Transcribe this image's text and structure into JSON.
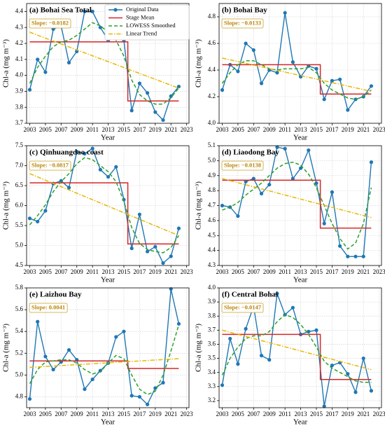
{
  "chart_data": [
    {
      "type": "line",
      "title": "(a) Bohai Sea Total",
      "annotation": "Slope: −0.0182",
      "xlabel": "Year",
      "ylabel": "Chl-a (mg m⁻³)",
      "xlim": [
        2002.6,
        2023.3
      ],
      "xticks": [
        2003,
        2005,
        2007,
        2009,
        2011,
        2013,
        2015,
        2017,
        2019,
        2021,
        2023
      ],
      "ylim": [
        3.7,
        4.45
      ],
      "yticks": [
        3.7,
        3.8,
        3.9,
        {
          "value": 4,
          "label": "4.0"
        },
        4.1,
        4.2,
        4.3,
        4.4
      ],
      "grid": true,
      "legend": "upper center",
      "x": [
        2003,
        2004,
        2005,
        2006,
        2007,
        2008,
        2009,
        2010,
        2011,
        2012,
        2013,
        2014,
        2015,
        2016,
        2017,
        2018,
        2019,
        2020,
        2021,
        2022
      ],
      "series": [
        {
          "name": "Original Data",
          "color": "#1f77b4",
          "style": "solid",
          "marker": true,
          "values": [
            3.91,
            4.1,
            4.02,
            4.29,
            4.31,
            4.08,
            4.15,
            4.4,
            4.4,
            4.3,
            4.22,
            4.35,
            4.22,
            3.78,
            3.95,
            3.89,
            3.77,
            3.72,
            3.87,
            3.93
          ]
        },
        {
          "name": "Stage Mean",
          "color": "#d62728",
          "style": "solid",
          "marker": false,
          "x": [
            2003,
            2015.5,
            2015.5,
            2022
          ],
          "values": [
            4.21,
            4.21,
            3.84,
            3.84
          ]
        },
        {
          "name": "LOWESS Smoothed",
          "color": "#2ca02c",
          "style": "dashed",
          "marker": false,
          "values": [
            3.95,
            4.05,
            4.12,
            4.18,
            4.21,
            4.22,
            4.25,
            4.29,
            4.33,
            4.31,
            4.27,
            4.22,
            4.12,
            3.97,
            3.88,
            3.84,
            3.82,
            3.82,
            3.86,
            3.92
          ]
        },
        {
          "name": "Linear Trend",
          "color": "#e6b800",
          "style": "dashdot",
          "marker": false,
          "x": [
            2003,
            2022
          ],
          "values": [
            4.27,
            3.92
          ]
        }
      ]
    },
    {
      "type": "line",
      "title": "(b) Bohai Bay",
      "annotation": "Slope: −0.0133",
      "xlabel": "Year",
      "ylabel": "Chl-a (mg m⁻³)",
      "xlim": [
        2002.6,
        2023.3
      ],
      "xticks": [
        2003,
        2005,
        2007,
        2009,
        2011,
        2013,
        2015,
        2017,
        2019,
        2021,
        2023
      ],
      "ylim": [
        4.0,
        4.9
      ],
      "yticks": [
        {
          "value": 4,
          "label": "4.0"
        },
        4.2,
        4.4,
        4.6,
        4.8
      ],
      "grid": true,
      "x": [
        2003,
        2004,
        2005,
        2006,
        2007,
        2008,
        2009,
        2010,
        2011,
        2012,
        2013,
        2014,
        2015,
        2016,
        2017,
        2018,
        2019,
        2020,
        2021,
        2022
      ],
      "series": [
        {
          "color": "#1f77b4",
          "style": "solid",
          "marker": true,
          "values": [
            4.25,
            4.44,
            4.39,
            4.6,
            4.55,
            4.3,
            4.4,
            4.38,
            4.83,
            4.46,
            4.35,
            4.43,
            4.41,
            4.18,
            4.32,
            4.33,
            4.1,
            4.18,
            4.2,
            4.28
          ]
        },
        {
          "color": "#d62728",
          "style": "solid",
          "marker": false,
          "x": [
            2003,
            2015.5,
            2015.5,
            2022
          ],
          "values": [
            4.44,
            4.44,
            4.22,
            4.22
          ]
        },
        {
          "color": "#2ca02c",
          "style": "dashed",
          "marker": false,
          "values": [
            4.3,
            4.38,
            4.44,
            4.47,
            4.47,
            4.44,
            4.41,
            4.4,
            4.41,
            4.41,
            4.41,
            4.42,
            4.38,
            4.3,
            4.25,
            4.22,
            4.19,
            4.18,
            4.2,
            4.25
          ]
        },
        {
          "color": "#e6b800",
          "style": "dashdot",
          "marker": false,
          "x": [
            2003,
            2022
          ],
          "values": [
            4.49,
            4.24
          ]
        }
      ]
    },
    {
      "type": "line",
      "title": "(c) Qinhuangdao coast",
      "annotation": "Slope: −0.0817",
      "xlabel": "Year",
      "ylabel": "Chl-a (mg m⁻³)",
      "xlim": [
        2002.6,
        2023.3
      ],
      "xticks": [
        2003,
        2005,
        2007,
        2009,
        2011,
        2013,
        2015,
        2017,
        2019,
        2021,
        2023
      ],
      "ylim": [
        4.5,
        7.5
      ],
      "yticks": [
        4.5,
        {
          "value": 5,
          "label": "5.0"
        },
        5.5,
        {
          "value": 6,
          "label": "6.0"
        },
        6.5,
        {
          "value": 7,
          "label": "7.0"
        },
        7.5
      ],
      "grid": true,
      "x": [
        2003,
        2004,
        2005,
        2006,
        2007,
        2008,
        2009,
        2010,
        2011,
        2012,
        2013,
        2014,
        2015,
        2016,
        2017,
        2018,
        2019,
        2020,
        2021,
        2022
      ],
      "series": [
        {
          "color": "#1f77b4",
          "style": "solid",
          "marker": true,
          "values": [
            5.68,
            5.6,
            5.87,
            6.55,
            6.62,
            6.45,
            7.35,
            7.3,
            7.43,
            6.9,
            6.72,
            6.97,
            6.15,
            4.93,
            5.78,
            4.85,
            4.97,
            4.56,
            4.73,
            5.43
          ]
        },
        {
          "color": "#d62728",
          "style": "solid",
          "marker": false,
          "x": [
            2003,
            2015.5,
            2015.5,
            2022
          ],
          "values": [
            6.57,
            6.57,
            5.04,
            5.04
          ]
        },
        {
          "color": "#2ca02c",
          "style": "dashed",
          "marker": false,
          "values": [
            5.52,
            5.75,
            6.02,
            6.35,
            6.6,
            6.8,
            7.05,
            7.2,
            7.15,
            7.0,
            6.85,
            6.6,
            6.1,
            5.45,
            5.05,
            4.9,
            4.85,
            4.82,
            4.95,
            5.25
          ]
        },
        {
          "color": "#e6b800",
          "style": "dashdot",
          "marker": false,
          "x": [
            2003,
            2022
          ],
          "values": [
            6.8,
            5.25
          ]
        }
      ]
    },
    {
      "type": "line",
      "title": "(d) Liaodong Bay",
      "annotation": "Slope: −0.0138",
      "xlabel": "Year",
      "ylabel": "Chl-a (mg m⁻³)",
      "xlim": [
        2002.6,
        2023.3
      ],
      "xticks": [
        2003,
        2005,
        2007,
        2009,
        2011,
        2013,
        2015,
        2017,
        2019,
        2021,
        2023
      ],
      "ylim": [
        4.3,
        5.1
      ],
      "yticks": [
        4.3,
        4.4,
        4.5,
        4.6,
        4.7,
        4.8,
        4.9,
        {
          "value": 5,
          "label": "5.0"
        },
        5.1
      ],
      "grid": true,
      "x": [
        2003,
        2004,
        2005,
        2006,
        2007,
        2008,
        2009,
        2010,
        2011,
        2012,
        2013,
        2014,
        2015,
        2016,
        2017,
        2018,
        2019,
        2020,
        2021,
        2022
      ],
      "series": [
        {
          "color": "#1f77b4",
          "style": "solid",
          "marker": true,
          "values": [
            4.7,
            4.69,
            4.63,
            4.86,
            4.88,
            4.78,
            4.84,
            5.09,
            5.08,
            4.88,
            4.95,
            5.07,
            4.85,
            4.58,
            4.79,
            4.43,
            4.36,
            4.36,
            4.36,
            4.99
          ]
        },
        {
          "color": "#d62728",
          "style": "solid",
          "marker": false,
          "x": [
            2003,
            2015.5,
            2015.5,
            2022
          ],
          "values": [
            4.87,
            4.87,
            4.55,
            4.55
          ]
        },
        {
          "color": "#2ca02c",
          "style": "dashed",
          "marker": false,
          "values": [
            4.67,
            4.69,
            4.72,
            4.77,
            4.81,
            4.85,
            4.9,
            4.95,
            4.98,
            4.99,
            4.97,
            4.91,
            4.82,
            4.7,
            4.58,
            4.48,
            4.41,
            4.45,
            4.58,
            4.82
          ]
        },
        {
          "color": "#e6b800",
          "style": "dashdot",
          "marker": false,
          "x": [
            2003,
            2022
          ],
          "values": [
            4.88,
            4.62
          ]
        }
      ]
    },
    {
      "type": "line",
      "title": "(e) Laizhou Bay",
      "annotation": "Slope: 0.0041",
      "xlabel": "Year",
      "ylabel": "Chl-a (mg m⁻³)",
      "xlim": [
        2002.6,
        2023.3
      ],
      "xticks": [
        2003,
        2005,
        2007,
        2009,
        2011,
        2013,
        2015,
        2017,
        2019,
        2021,
        2023
      ],
      "ylim": [
        4.7,
        5.8
      ],
      "yticks": [
        4.8,
        {
          "value": 5,
          "label": "5.0"
        },
        5.2,
        5.4,
        5.6,
        5.8
      ],
      "grid": true,
      "x": [
        2003,
        2004,
        2005,
        2006,
        2007,
        2008,
        2009,
        2010,
        2011,
        2012,
        2013,
        2014,
        2015,
        2016,
        2017,
        2018,
        2019,
        2020,
        2021,
        2022
      ],
      "series": [
        {
          "color": "#1f77b4",
          "style": "solid",
          "marker": true,
          "values": [
            4.78,
            5.49,
            5.17,
            5.05,
            5.12,
            5.23,
            5.14,
            4.87,
            4.96,
            5.04,
            5.11,
            5.35,
            5.4,
            4.81,
            4.8,
            4.73,
            4.88,
            4.93,
            5.79,
            5.47
          ]
        },
        {
          "color": "#d62728",
          "style": "solid",
          "marker": false,
          "x": [
            2003,
            2015.5,
            2015.5,
            2022
          ],
          "values": [
            5.13,
            5.13,
            5.06,
            5.06
          ]
        },
        {
          "color": "#2ca02c",
          "style": "dashed",
          "marker": false,
          "values": [
            4.92,
            5.05,
            5.12,
            5.13,
            5.14,
            5.14,
            5.11,
            5.05,
            5.01,
            5.03,
            5.11,
            5.18,
            5.15,
            5.0,
            4.87,
            4.82,
            4.85,
            5.0,
            5.22,
            5.46
          ]
        },
        {
          "color": "#e6b800",
          "style": "dashdot",
          "marker": false,
          "x": [
            2003,
            2022
          ],
          "values": [
            5.07,
            5.15
          ]
        }
      ]
    },
    {
      "type": "line",
      "title": "(f) Central Bohai",
      "annotation": "Slope: −0.0147",
      "xlabel": "Year",
      "ylabel": "Chl-a (mg m⁻³)",
      "xlim": [
        2002.6,
        2023.3
      ],
      "xticks": [
        2003,
        2005,
        2007,
        2009,
        2011,
        2013,
        2015,
        2017,
        2019,
        2021,
        2023
      ],
      "ylim": [
        3.15,
        4.0
      ],
      "yticks": [
        3.2,
        3.3,
        3.4,
        3.5,
        3.6,
        3.7,
        3.8,
        3.9,
        {
          "value": 4,
          "label": "4.0"
        }
      ],
      "grid": true,
      "x": [
        2003,
        2004,
        2005,
        2006,
        2007,
        2008,
        2009,
        2010,
        2011,
        2012,
        2013,
        2014,
        2015,
        2016,
        2017,
        2018,
        2019,
        2020,
        2021,
        2022
      ],
      "series": [
        {
          "color": "#1f77b4",
          "style": "solid",
          "marker": true,
          "values": [
            3.31,
            3.64,
            3.46,
            3.71,
            3.87,
            3.52,
            3.49,
            3.96,
            3.81,
            3.86,
            3.67,
            3.69,
            3.7,
            3.16,
            3.45,
            3.47,
            3.39,
            3.26,
            3.5,
            3.27
          ]
        },
        {
          "color": "#d62728",
          "style": "solid",
          "marker": false,
          "x": [
            2003,
            2015.5,
            2015.5,
            2022
          ],
          "values": [
            3.67,
            3.67,
            3.35,
            3.35
          ]
        },
        {
          "color": "#2ca02c",
          "style": "dashed",
          "marker": false,
          "values": [
            3.38,
            3.5,
            3.58,
            3.64,
            3.66,
            3.66,
            3.69,
            3.76,
            3.81,
            3.79,
            3.74,
            3.67,
            3.58,
            3.48,
            3.43,
            3.4,
            3.37,
            3.34,
            3.33,
            3.33
          ]
        },
        {
          "color": "#e6b800",
          "style": "dashdot",
          "marker": false,
          "x": [
            2003,
            2022
          ],
          "values": [
            3.7,
            3.42
          ]
        }
      ]
    }
  ]
}
